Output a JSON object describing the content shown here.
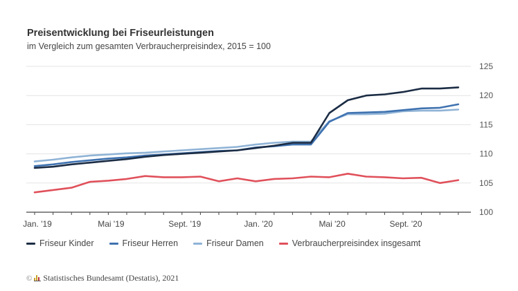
{
  "header": {
    "title": "Preisentwicklung bei Friseurleistungen",
    "subtitle": "im Vergleich zum gesamten Verbraucherpreisindex, 2015 = 100"
  },
  "source": {
    "copyright_symbol": "©",
    "text": "Statistisches Bundesamt (Destatis), 2021"
  },
  "chart_data": {
    "type": "line",
    "title": "Preisentwicklung bei Friseurleistungen",
    "subtitle": "im Vergleich zum gesamten Verbraucherpreisindex, 2015 = 100",
    "xlabel": "",
    "ylabel": "",
    "x": [
      "Jan. '19",
      "Feb. '19",
      "Mär. '19",
      "Apr. '19",
      "Mai '19",
      "Jun. '19",
      "Jul. '19",
      "Aug. '19",
      "Sept. '19",
      "Okt. '19",
      "Nov. '19",
      "Dez. '19",
      "Jan. '20",
      "Feb. '20",
      "Mär. '20",
      "Apr. '20",
      "Mai '20",
      "Jun. '20",
      "Jul. '20",
      "Aug. '20",
      "Sept. '20",
      "Okt. '20",
      "Nov. '20",
      "Dez. '20"
    ],
    "x_tick_labels": [
      {
        "index": 0,
        "label": "Jan. '19"
      },
      {
        "index": 4,
        "label": "Mai '19"
      },
      {
        "index": 8,
        "label": "Sept. '19"
      },
      {
        "index": 12,
        "label": "Jan. '20"
      },
      {
        "index": 16,
        "label": "Mai '20"
      },
      {
        "index": 20,
        "label": "Sept. '20"
      }
    ],
    "y_ticks": [
      100,
      105,
      110,
      115,
      120,
      125
    ],
    "ylim": [
      100,
      125
    ],
    "grid": true,
    "y_axis_position": "right",
    "legend_position": "bottom",
    "series": [
      {
        "name": "Friseur Kinder",
        "color": "#1b2c44",
        "values": [
          107.6,
          107.8,
          108.2,
          108.5,
          108.8,
          109.1,
          109.5,
          109.8,
          110.0,
          110.2,
          110.4,
          110.6,
          111.0,
          111.4,
          111.9,
          111.9,
          117.0,
          119.2,
          120.0,
          120.2,
          120.6,
          121.2,
          121.2,
          121.4
        ]
      },
      {
        "name": "Friseur Herren",
        "color": "#3f72b0",
        "values": [
          107.9,
          108.2,
          108.6,
          108.9,
          109.2,
          109.4,
          109.7,
          109.9,
          110.1,
          110.3,
          110.5,
          110.6,
          111.1,
          111.3,
          111.6,
          111.6,
          115.5,
          117.0,
          117.1,
          117.2,
          117.5,
          117.8,
          117.9,
          118.5
        ]
      },
      {
        "name": "Friseur Damen",
        "color": "#8fb3d6",
        "values": [
          108.7,
          109.0,
          109.4,
          109.7,
          109.9,
          110.1,
          110.2,
          110.4,
          110.6,
          110.8,
          111.0,
          111.2,
          111.6,
          111.9,
          112.1,
          112.1,
          115.6,
          116.8,
          116.8,
          116.9,
          117.3,
          117.4,
          117.4,
          117.6
        ]
      },
      {
        "name": "Verbraucherpreisindex insgesamt",
        "color": "#e0505a",
        "values": [
          103.4,
          103.8,
          104.2,
          105.2,
          105.4,
          105.7,
          106.2,
          106.0,
          106.0,
          106.1,
          105.3,
          105.8,
          105.3,
          105.7,
          105.8,
          106.1,
          106.0,
          106.6,
          106.1,
          106.0,
          105.8,
          105.9,
          105.0,
          105.5
        ]
      }
    ]
  }
}
